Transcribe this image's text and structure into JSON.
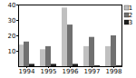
{
  "chart_data": {
    "type": "bar",
    "categories": [
      "1994",
      "1995",
      "1996",
      "1997",
      "1998"
    ],
    "series": [
      {
        "name": "1",
        "color": "#c0c0c0",
        "values": [
          14,
          11,
          38,
          13,
          13
        ]
      },
      {
        "name": "2",
        "color": "#707070",
        "values": [
          16,
          13,
          27,
          19,
          20
        ]
      },
      {
        "name": "3",
        "color": "#202020",
        "values": [
          1.5,
          1.5,
          1.5,
          0.5,
          0.5
        ]
      }
    ],
    "ylim": [
      0,
      40
    ],
    "yticks": [
      10,
      20,
      30,
      40
    ],
    "legend": "upper right"
  }
}
